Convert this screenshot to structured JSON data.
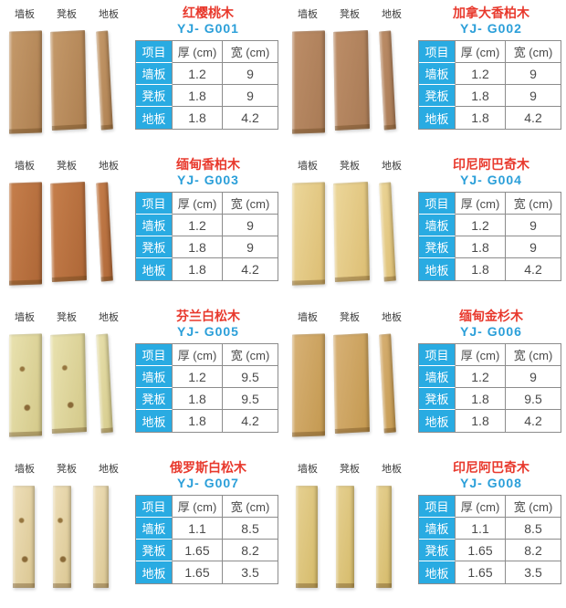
{
  "plank_labels": [
    "墙板",
    "凳板",
    "地板"
  ],
  "table_headers": [
    "项目",
    "厚 (cm)",
    "宽 (cm)"
  ],
  "colors": {
    "title_red": "#e8392d",
    "model_blue": "#2b9fd9",
    "cell_blue": "#29abe2",
    "border_gray": "#8c8c8c"
  },
  "products": [
    {
      "name": "红樱桃木",
      "model": "YJ- G001",
      "wood": {
        "tones": [
          "#c59a6b",
          "#ad7f50"
        ],
        "knots": false,
        "narrow": false
      },
      "rows": [
        {
          "label": "墙板",
          "thickness": "1.2",
          "width": "9"
        },
        {
          "label": "凳板",
          "thickness": "1.8",
          "width": "9"
        },
        {
          "label": "地板",
          "thickness": "1.8",
          "width": "4.2"
        }
      ]
    },
    {
      "name": "加拿大香柏木",
      "model": "YJ- G002",
      "wood": {
        "tones": [
          "#bd8e68",
          "#a87a55"
        ],
        "knots": false,
        "narrow": false
      },
      "rows": [
        {
          "label": "墙板",
          "thickness": "1.2",
          "width": "9"
        },
        {
          "label": "凳板",
          "thickness": "1.8",
          "width": "9"
        },
        {
          "label": "地板",
          "thickness": "1.8",
          "width": "4.2"
        }
      ]
    },
    {
      "name": "缅甸香柏木",
      "model": "YJ- G003",
      "wood": {
        "tones": [
          "#c67f4c",
          "#ad6636"
        ],
        "knots": false,
        "narrow": false
      },
      "rows": [
        {
          "label": "墙板",
          "thickness": "1.2",
          "width": "9"
        },
        {
          "label": "凳板",
          "thickness": "1.8",
          "width": "9"
        },
        {
          "label": "地板",
          "thickness": "1.8",
          "width": "4.2"
        }
      ]
    },
    {
      "name": "印尼阿巴奇木",
      "model": "YJ- G004",
      "wood": {
        "tones": [
          "#ecd79b",
          "#dcbd72"
        ],
        "knots": false,
        "narrow": false
      },
      "rows": [
        {
          "label": "墙板",
          "thickness": "1.2",
          "width": "9"
        },
        {
          "label": "凳板",
          "thickness": "1.8",
          "width": "9"
        },
        {
          "label": "地板",
          "thickness": "1.8",
          "width": "4.2"
        }
      ]
    },
    {
      "name": "芬兰白松木",
      "model": "YJ- G005",
      "wood": {
        "tones": [
          "#e9e2b0",
          "#d3c888"
        ],
        "knots": true,
        "narrow": false
      },
      "rows": [
        {
          "label": "墙板",
          "thickness": "1.2",
          "width": "9.5"
        },
        {
          "label": "凳板",
          "thickness": "1.8",
          "width": "9.5"
        },
        {
          "label": "地板",
          "thickness": "1.8",
          "width": "4.2"
        }
      ]
    },
    {
      "name": "缅甸金杉木",
      "model": "YJ- G006",
      "wood": {
        "tones": [
          "#d8b277",
          "#c3984f"
        ],
        "knots": false,
        "narrow": false
      },
      "rows": [
        {
          "label": "墙板",
          "thickness": "1.2",
          "width": "9"
        },
        {
          "label": "凳板",
          "thickness": "1.8",
          "width": "9.5"
        },
        {
          "label": "地板",
          "thickness": "1.8",
          "width": "4.2"
        }
      ]
    },
    {
      "name": "俄罗斯白松木",
      "model": "YJ- G007",
      "wood": {
        "tones": [
          "#eedfba",
          "#dac691"
        ],
        "knots": true,
        "narrow": true
      },
      "rows": [
        {
          "label": "墙板",
          "thickness": "1.1",
          "width": "8.5"
        },
        {
          "label": "凳板",
          "thickness": "1.65",
          "width": "8.2"
        },
        {
          "label": "地板",
          "thickness": "1.65",
          "width": "3.5"
        }
      ]
    },
    {
      "name": "印尼阿巴奇木",
      "model": "YJ- G008",
      "wood": {
        "tones": [
          "#e6d193",
          "#d5ba69"
        ],
        "knots": false,
        "narrow": true
      },
      "rows": [
        {
          "label": "墙板",
          "thickness": "1.1",
          "width": "8.5"
        },
        {
          "label": "凳板",
          "thickness": "1.65",
          "width": "8.2"
        },
        {
          "label": "地板",
          "thickness": "1.65",
          "width": "3.5"
        }
      ]
    }
  ]
}
